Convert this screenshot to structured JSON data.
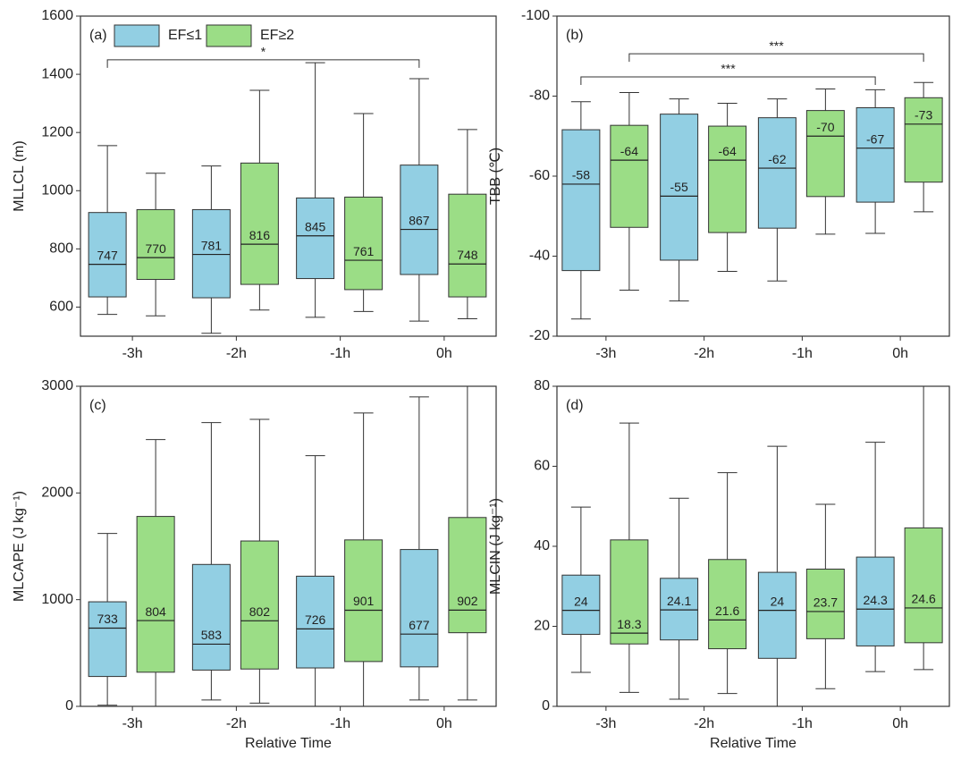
{
  "chart_data": [
    {
      "type": "box",
      "panel": "(a)",
      "ylabel": "MLLCL (m)",
      "categories": [
        "-3h",
        "-2h",
        "-1h",
        "0h"
      ],
      "ylim": [
        500,
        1600
      ],
      "yticks": [
        600,
        800,
        1000,
        1200,
        1400,
        1600
      ],
      "legend": "upper left",
      "series": [
        {
          "name": "EF≤1",
          "color": "#92cfe3",
          "whislo": [
            575,
            510,
            565,
            552
          ],
          "q1": [
            635,
            632,
            698,
            712
          ],
          "median": [
            747,
            781,
            845,
            867
          ],
          "q3": [
            925,
            935,
            975,
            1088
          ],
          "whishi": [
            1155,
            1085,
            1440,
            1385
          ]
        },
        {
          "name": "EF≥2",
          "color": "#9bdd86",
          "whislo": [
            570,
            590,
            585,
            560
          ],
          "q1": [
            695,
            678,
            660,
            635
          ],
          "median": [
            770,
            816,
            761,
            748
          ],
          "q3": [
            935,
            1095,
            978,
            988
          ],
          "whishi": [
            1060,
            1345,
            1265,
            1210
          ]
        }
      ],
      "brackets": [
        {
          "label": "*",
          "y": 1450,
          "from": [
            0,
            0
          ],
          "to": [
            3,
            0
          ]
        }
      ]
    },
    {
      "type": "box",
      "panel": "(b)",
      "ylabel": "TBB (℃)",
      "categories": [
        "-3h",
        "-2h",
        "-1h",
        "0h"
      ],
      "ylim": [
        -20,
        -100
      ],
      "yticks": [
        -100,
        -80,
        -60,
        -40,
        -20
      ],
      "series": [
        {
          "color": "#92cfe3",
          "whislo": [
            -24.3,
            -28.8,
            -33.8,
            -45.7
          ],
          "q1": [
            -36.4,
            -39,
            -47,
            -53.5
          ],
          "median": [
            -58,
            -55,
            -62,
            -67
          ],
          "q3": [
            -71.6,
            -75.5,
            -74.6,
            -77.1
          ],
          "whishi": [
            -78.6,
            -79.3,
            -79.3,
            -81.6
          ]
        },
        {
          "color": "#9bdd86",
          "whislo": [
            -31.5,
            -36.2,
            -45.5,
            -51.1
          ],
          "q1": [
            -47.2,
            -45.9,
            -54.9,
            -58.5
          ],
          "median": [
            -64,
            -64,
            -70,
            -73
          ],
          "q3": [
            -72.7,
            -72.5,
            -76.4,
            -79.6
          ],
          "whishi": [
            -80.9,
            -78.2,
            -81.8,
            -83.4
          ]
        }
      ],
      "brackets": [
        {
          "label": "***",
          "y": -90.6,
          "from": [
            0,
            1
          ],
          "to": [
            3,
            1
          ]
        },
        {
          "label": "***",
          "y": -84.8,
          "from": [
            0,
            0
          ],
          "to": [
            3,
            0
          ]
        }
      ]
    },
    {
      "type": "box",
      "panel": "(c)",
      "ylabel": "MLCAPE (J kg⁻¹)",
      "xlabel": "Relative Time",
      "categories": [
        "-3h",
        "-2h",
        "-1h",
        "0h"
      ],
      "ylim": [
        0,
        3000
      ],
      "yticks": [
        0,
        1000,
        2000,
        3000
      ],
      "series": [
        {
          "color": "#92cfe3",
          "whislo": [
            10,
            60,
            0,
            60
          ],
          "q1": [
            280,
            340,
            360,
            370
          ],
          "median": [
            733,
            583,
            726,
            677
          ],
          "q3": [
            980,
            1330,
            1220,
            1470
          ],
          "whishi": [
            1620,
            2660,
            2350,
            2900
          ]
        },
        {
          "color": "#9bdd86",
          "whislo": [
            0,
            30,
            0,
            60
          ],
          "q1": [
            320,
            350,
            420,
            690
          ],
          "median": [
            804,
            802,
            901,
            902
          ],
          "q3": [
            1780,
            1550,
            1560,
            1770
          ],
          "whishi": [
            2500,
            2690,
            2750,
            3000
          ]
        }
      ]
    },
    {
      "type": "box",
      "panel": "(d)",
      "ylabel": "MLCIN (J kg⁻¹)",
      "xlabel": "Relative Time",
      "categories": [
        "-3h",
        "-2h",
        "-1h",
        "0h"
      ],
      "ylim": [
        0,
        80
      ],
      "yticks": [
        0,
        20,
        40,
        60,
        80
      ],
      "series": [
        {
          "color": "#92cfe3",
          "whislo": [
            8.5,
            1.8,
            0,
            8.7
          ],
          "q1": [
            18,
            16.6,
            12,
            15.1
          ],
          "median": [
            24,
            24.1,
            24,
            24.3
          ],
          "q3": [
            32.8,
            32,
            33.5,
            37.3
          ],
          "whishi": [
            49.8,
            52,
            65,
            66
          ]
        },
        {
          "color": "#9bdd86",
          "whislo": [
            3.5,
            3.2,
            4.4,
            9.2
          ],
          "q1": [
            15.6,
            14.4,
            16.9,
            15.9
          ],
          "median": [
            18.3,
            21.6,
            23.7,
            24.6
          ],
          "q3": [
            41.6,
            36.7,
            34.3,
            44.6
          ],
          "whishi": [
            70.8,
            58.4,
            50.5,
            80
          ]
        }
      ]
    }
  ]
}
